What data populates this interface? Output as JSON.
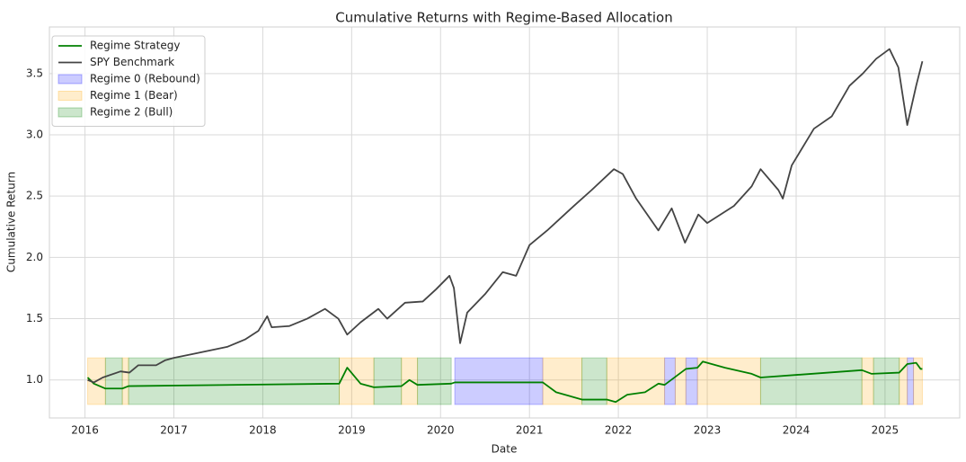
{
  "chart_data": {
    "type": "line",
    "title": "Cumulative Returns with Regime-Based Allocation",
    "xlabel": "Date",
    "ylabel": "Cumulative Return",
    "xlim": [
      2015.6,
      2025.84
    ],
    "ylim": [
      0.69,
      3.88
    ],
    "xticks": [
      2016,
      2017,
      2018,
      2019,
      2020,
      2021,
      2022,
      2023,
      2024,
      2025
    ],
    "yticks": [
      {
        "value": 1,
        "label": "1.0"
      },
      1.5,
      {
        "value": 2,
        "label": "2.0"
      },
      2.5,
      {
        "value": 3,
        "label": "3.0"
      },
      3.5
    ],
    "grid": true,
    "legend": "upper left",
    "series": [
      {
        "name": "Regime Strategy",
        "color": "#008000",
        "x": [
          2016.03,
          2016.1,
          2016.23,
          2016.42,
          2016.49,
          2018.86,
          2018.95,
          2019.1,
          2019.25,
          2019.56,
          2019.65,
          2019.74,
          2020.12,
          2020.16,
          2021.15,
          2021.3,
          2021.59,
          2021.87,
          2021.97,
          2022.1,
          2022.3,
          2022.45,
          2022.52,
          2022.76,
          2022.89,
          2022.95,
          2023.2,
          2023.5,
          2023.6,
          2024.74,
          2024.85,
          2025.16,
          2025.25,
          2025.35,
          2025.4,
          2025.42
        ],
        "values": [
          1.02,
          0.97,
          0.93,
          0.93,
          0.95,
          0.97,
          1.1,
          0.97,
          0.94,
          0.95,
          1.0,
          0.96,
          0.97,
          0.98,
          0.98,
          0.9,
          0.84,
          0.84,
          0.82,
          0.88,
          0.9,
          0.97,
          0.96,
          1.09,
          1.1,
          1.15,
          1.1,
          1.05,
          1.02,
          1.08,
          1.05,
          1.06,
          1.13,
          1.14,
          1.09,
          1.09
        ]
      },
      {
        "name": "SPY Benchmark",
        "color": "#444444",
        "x": [
          2016.03,
          2016.1,
          2016.2,
          2016.4,
          2016.5,
          2016.6,
          2016.8,
          2016.9,
          2017.0,
          2017.2,
          2017.4,
          2017.6,
          2017.8,
          2017.95,
          2018.05,
          2018.1,
          2018.3,
          2018.5,
          2018.7,
          2018.85,
          2018.95,
          2019.1,
          2019.3,
          2019.4,
          2019.6,
          2019.8,
          2019.95,
          2020.1,
          2020.15,
          2020.22,
          2020.3,
          2020.5,
          2020.7,
          2020.85,
          2021.0,
          2021.2,
          2021.5,
          2021.7,
          2021.95,
          2022.05,
          2022.2,
          2022.45,
          2022.6,
          2022.75,
          2022.9,
          2023.0,
          2023.3,
          2023.5,
          2023.6,
          2023.8,
          2023.85,
          2023.95,
          2024.2,
          2024.4,
          2024.6,
          2024.75,
          2024.9,
          2025.05,
          2025.15,
          2025.25,
          2025.35,
          2025.42
        ],
        "values": [
          1.0,
          0.98,
          1.02,
          1.07,
          1.06,
          1.12,
          1.12,
          1.16,
          1.18,
          1.21,
          1.24,
          1.27,
          1.33,
          1.4,
          1.52,
          1.43,
          1.44,
          1.5,
          1.58,
          1.5,
          1.37,
          1.47,
          1.58,
          1.5,
          1.63,
          1.64,
          1.74,
          1.85,
          1.75,
          1.3,
          1.55,
          1.7,
          1.88,
          1.85,
          2.1,
          2.22,
          2.42,
          2.55,
          2.72,
          2.68,
          2.48,
          2.22,
          2.4,
          2.12,
          2.35,
          2.28,
          2.42,
          2.58,
          2.72,
          2.55,
          2.48,
          2.75,
          3.05,
          3.15,
          3.4,
          3.5,
          3.62,
          3.7,
          3.55,
          3.08,
          3.4,
          3.6
        ]
      }
    ],
    "span_y": [
      0.8,
      1.18
    ],
    "regimes": [
      {
        "name": "Regime 0 (Rebound)",
        "color": "#0000ff",
        "spans": [
          [
            2020.16,
            2021.15
          ],
          [
            2022.52,
            2022.64
          ],
          [
            2022.76,
            2022.89
          ],
          [
            2025.25,
            2025.32
          ]
        ]
      },
      {
        "name": "Regime 1 (Bear)",
        "color": "#ffa500",
        "spans": [
          [
            2016.03,
            2016.23
          ],
          [
            2016.42,
            2016.49
          ],
          [
            2018.86,
            2019.25
          ],
          [
            2019.56,
            2019.74
          ],
          [
            2021.15,
            2021.59
          ],
          [
            2021.87,
            2022.52
          ],
          [
            2022.64,
            2022.76
          ],
          [
            2022.89,
            2023.6
          ],
          [
            2024.74,
            2024.87
          ],
          [
            2025.16,
            2025.25
          ],
          [
            2025.32,
            2025.42
          ]
        ]
      },
      {
        "name": "Regime 2 (Bull)",
        "color": "#008000",
        "spans": [
          [
            2016.23,
            2016.42
          ],
          [
            2016.49,
            2018.86
          ],
          [
            2019.25,
            2019.56
          ],
          [
            2019.74,
            2020.12
          ],
          [
            2021.59,
            2021.87
          ],
          [
            2023.6,
            2024.74
          ],
          [
            2024.87,
            2025.16
          ]
        ]
      }
    ]
  }
}
